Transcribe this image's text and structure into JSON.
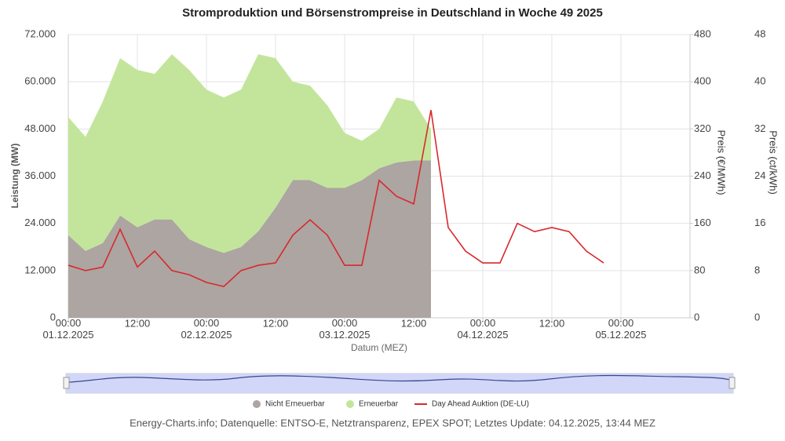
{
  "chart_data": {
    "type": "area",
    "title": "Stromproduktion und Börsenstrompreise in Deutschland in Woche 49 2025",
    "xlabel": "Datum (MEZ)",
    "ylabel": "Leistung (MW)",
    "y2label": "Preis (€/MWh)",
    "y3label": "Preis (ct/kWh)",
    "footer": "Energy-Charts.info; Datenquelle: ENTSO-E, Netztransparenz, EPEX SPOT; Letztes Update: 04.12.2025, 13:44 MEZ",
    "x": [
      "01.12.2025 00:00",
      "01.12.2025 03:00",
      "01.12.2025 06:00",
      "01.12.2025 09:00",
      "01.12.2025 12:00",
      "01.12.2025 15:00",
      "01.12.2025 18:00",
      "01.12.2025 21:00",
      "02.12.2025 00:00",
      "02.12.2025 03:00",
      "02.12.2025 06:00",
      "02.12.2025 09:00",
      "02.12.2025 12:00",
      "02.12.2025 15:00",
      "02.12.2025 18:00",
      "02.12.2025 21:00",
      "03.12.2025 00:00",
      "03.12.2025 03:00",
      "03.12.2025 06:00",
      "03.12.2025 09:00",
      "03.12.2025 12:00",
      "03.12.2025 15:00",
      "03.12.2025 18:00",
      "03.12.2025 21:00",
      "04.12.2025 00:00",
      "04.12.2025 03:00",
      "04.12.2025 06:00",
      "04.12.2025 09:00",
      "04.12.2025 12:00",
      "04.12.2025 15:00",
      "04.12.2025 18:00",
      "04.12.2025 21:00"
    ],
    "xlim": [
      "01.12.2025 00:00",
      "05.12.2025 12:00"
    ],
    "xticks": [
      {
        "value": "01.12.2025 00:00",
        "label": "00:00\n01.12.2025"
      },
      {
        "value": "01.12.2025 12:00",
        "label": "12:00"
      },
      {
        "value": "02.12.2025 00:00",
        "label": "00:00\n02.12.2025"
      },
      {
        "value": "02.12.2025 12:00",
        "label": "12:00"
      },
      {
        "value": "03.12.2025 00:00",
        "label": "00:00\n03.12.2025"
      },
      {
        "value": "03.12.2025 12:00",
        "label": "12:00"
      },
      {
        "value": "04.12.2025 00:00",
        "label": "00:00\n04.12.2025"
      },
      {
        "value": "04.12.2025 12:00",
        "label": "12:00"
      },
      {
        "value": "05.12.2025 00:00",
        "label": "00:00\n05.12.2025"
      }
    ],
    "ylim": [
      0,
      72000
    ],
    "yticks": [
      0,
      {
        "value": 12000,
        "label": "12.000"
      },
      {
        "value": 24000,
        "label": "24.000"
      },
      {
        "value": 36000,
        "label": "36.000"
      },
      {
        "value": 48000,
        "label": "48.000"
      },
      {
        "value": 60000,
        "label": "60.000"
      },
      {
        "value": 72000,
        "label": "72.000"
      }
    ],
    "y2lim": [
      0,
      480
    ],
    "y2ticks": [
      0,
      80,
      160,
      240,
      320,
      400,
      480
    ],
    "y3lim": [
      0,
      48
    ],
    "y3ticks": [
      0,
      8,
      16,
      24,
      32,
      40,
      48
    ],
    "grid": true,
    "series": [
      {
        "name": "Nicht Erneuerbar",
        "color": "#aca5a2",
        "kind": "area",
        "values": [
          21000,
          17000,
          19000,
          26000,
          23000,
          25000,
          25000,
          20000,
          18000,
          16500,
          18000,
          22000,
          28000,
          35000,
          35000,
          33000,
          33000,
          35000,
          38000,
          39500,
          40000,
          40000,
          null,
          null,
          null,
          null,
          null,
          null,
          null,
          null,
          null,
          null
        ]
      },
      {
        "name": "Erneuerbar",
        "color": "#c3e59b",
        "kind": "area",
        "values": [
          30000,
          29000,
          36000,
          40000,
          40000,
          37000,
          42000,
          43000,
          40000,
          39500,
          40000,
          45000,
          38000,
          25000,
          24000,
          21000,
          14000,
          10000,
          10000,
          16500,
          15000,
          8000,
          null,
          null,
          null,
          null,
          null,
          null,
          null,
          null,
          null,
          null
        ]
      },
      {
        "name": "Day Ahead Auktion (DE-LU)",
        "color": "#d8292b",
        "kind": "line",
        "axis": "y2",
        "values": [
          89,
          80,
          86,
          150,
          86,
          113,
          80,
          73,
          60,
          53,
          80,
          89,
          93,
          140,
          166,
          140,
          89,
          89,
          233,
          206,
          193,
          352,
          153,
          113,
          93,
          93,
          160,
          146,
          153,
          146,
          113,
          93
        ]
      }
    ]
  }
}
